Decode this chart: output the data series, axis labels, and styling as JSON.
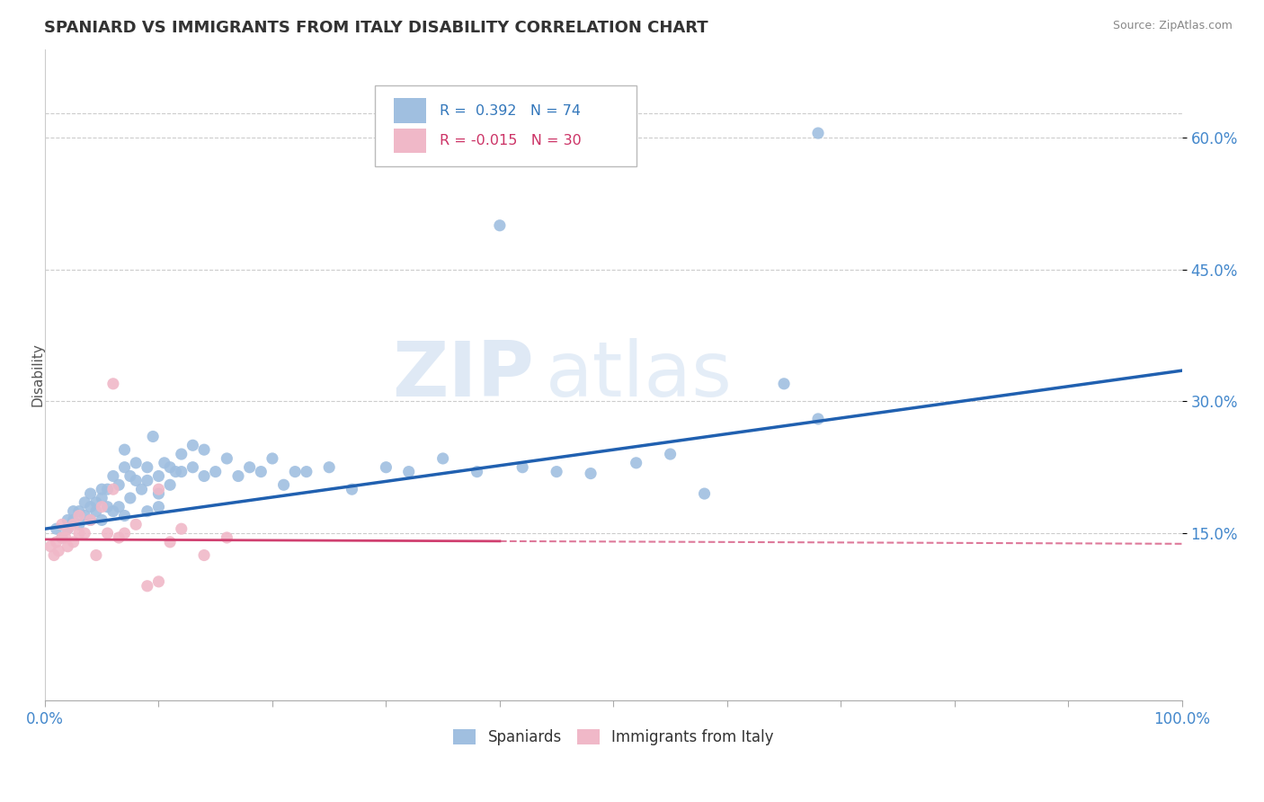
{
  "title": "SPANIARD VS IMMIGRANTS FROM ITALY DISABILITY CORRELATION CHART",
  "source": "Source: ZipAtlas.com",
  "ylabel": "Disability",
  "xlim": [
    0.0,
    1.0
  ],
  "ylim": [
    -0.04,
    0.7
  ],
  "yticks": [
    0.15,
    0.3,
    0.45,
    0.6
  ],
  "yticklabels": [
    "15.0%",
    "30.0%",
    "45.0%",
    "60.0%"
  ],
  "blue_color": "#a0bfe0",
  "pink_color": "#f0b8c8",
  "blue_line_color": "#2060b0",
  "pink_line_color": "#d04070",
  "watermark": "ZIPatlas",
  "spaniards_x": [
    0.01,
    0.015,
    0.02,
    0.02,
    0.025,
    0.025,
    0.03,
    0.03,
    0.035,
    0.035,
    0.04,
    0.04,
    0.04,
    0.045,
    0.045,
    0.05,
    0.05,
    0.05,
    0.055,
    0.055,
    0.06,
    0.06,
    0.065,
    0.065,
    0.07,
    0.07,
    0.07,
    0.075,
    0.075,
    0.08,
    0.08,
    0.085,
    0.09,
    0.09,
    0.09,
    0.095,
    0.1,
    0.1,
    0.1,
    0.105,
    0.11,
    0.11,
    0.115,
    0.12,
    0.12,
    0.13,
    0.13,
    0.14,
    0.14,
    0.15,
    0.16,
    0.17,
    0.18,
    0.19,
    0.2,
    0.21,
    0.22,
    0.23,
    0.25,
    0.27,
    0.3,
    0.32,
    0.35,
    0.38,
    0.42,
    0.45,
    0.48,
    0.52,
    0.55,
    0.58,
    0.65,
    0.68,
    0.4,
    0.68
  ],
  "spaniards_y": [
    0.155,
    0.145,
    0.165,
    0.155,
    0.175,
    0.165,
    0.175,
    0.16,
    0.185,
    0.17,
    0.18,
    0.165,
    0.195,
    0.175,
    0.185,
    0.165,
    0.19,
    0.2,
    0.18,
    0.2,
    0.175,
    0.215,
    0.18,
    0.205,
    0.17,
    0.225,
    0.245,
    0.19,
    0.215,
    0.23,
    0.21,
    0.2,
    0.175,
    0.21,
    0.225,
    0.26,
    0.215,
    0.195,
    0.18,
    0.23,
    0.205,
    0.225,
    0.22,
    0.22,
    0.24,
    0.225,
    0.25,
    0.215,
    0.245,
    0.22,
    0.235,
    0.215,
    0.225,
    0.22,
    0.235,
    0.205,
    0.22,
    0.22,
    0.225,
    0.2,
    0.225,
    0.22,
    0.235,
    0.22,
    0.225,
    0.22,
    0.218,
    0.23,
    0.24,
    0.195,
    0.32,
    0.28,
    0.5,
    0.605
  ],
  "italy_x": [
    0.005,
    0.008,
    0.01,
    0.012,
    0.015,
    0.015,
    0.018,
    0.02,
    0.02,
    0.025,
    0.025,
    0.03,
    0.03,
    0.035,
    0.04,
    0.045,
    0.05,
    0.055,
    0.06,
    0.065,
    0.07,
    0.08,
    0.09,
    0.1,
    0.11,
    0.12,
    0.14,
    0.16,
    0.06,
    0.1
  ],
  "italy_y": [
    0.135,
    0.125,
    0.14,
    0.13,
    0.145,
    0.16,
    0.145,
    0.135,
    0.155,
    0.14,
    0.16,
    0.15,
    0.17,
    0.15,
    0.165,
    0.125,
    0.18,
    0.15,
    0.2,
    0.145,
    0.15,
    0.16,
    0.09,
    0.095,
    0.14,
    0.155,
    0.125,
    0.145,
    0.32,
    0.2
  ],
  "blue_line_x0": 0.0,
  "blue_line_y0": 0.155,
  "blue_line_x1": 1.0,
  "blue_line_y1": 0.335,
  "pink_line_x0": 0.0,
  "pink_line_y0": 0.143,
  "pink_line_x1_solid": 0.4,
  "pink_line_y1_solid": 0.141,
  "pink_line_x1_dash": 1.0,
  "pink_line_y1_dash": 0.138
}
